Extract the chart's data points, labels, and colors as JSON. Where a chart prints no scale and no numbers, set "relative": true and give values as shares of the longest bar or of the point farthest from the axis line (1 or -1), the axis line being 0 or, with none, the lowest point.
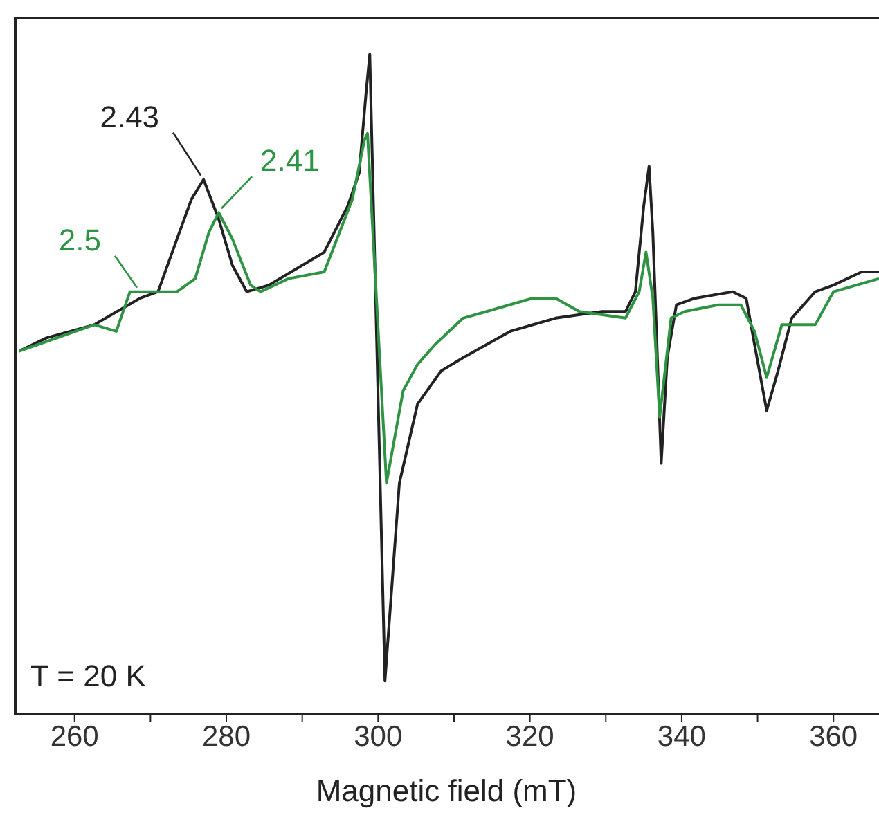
{
  "chart_data": {
    "type": "line",
    "relative": true,
    "xlabel": "Magnetic field (mT)",
    "xlim": [
      252,
      366
    ],
    "xticks": [
      260,
      {
        "value": 270,
        "label": null
      },
      280,
      {
        "value": 290,
        "label": null
      },
      300,
      {
        "value": 310,
        "label": null
      },
      320,
      {
        "value": 330,
        "label": null
      },
      340,
      {
        "value": 350,
        "label": null
      },
      360
    ],
    "tick_labels": "x",
    "grid": false,
    "legend": false,
    "marker": "none",
    "line_style": "solid",
    "annotations": [
      "T = 20 K",
      {
        "text": "2.43",
        "x": 277.0,
        "y": 0.81
      },
      {
        "text": "2.41",
        "x": 279.0,
        "y": 0.76
      },
      {
        "text": "2.5",
        "x": 268.6,
        "y": 0.64
      }
    ],
    "series": [
      {
        "color": "#222222",
        "x": [
          252.7,
          256.3,
          262.6,
          268.6,
          271.0,
          273.5,
          275.4,
          277.0,
          279.0,
          280.8,
          282.7,
          285.6,
          290.0,
          292.9,
          296.0,
          297.5,
          298.4,
          298.9,
          300.9,
          302.8,
          305.2,
          308.3,
          311.2,
          314.3,
          317.4,
          323.4,
          329.5,
          332.6,
          333.9,
          335.0,
          335.7,
          336.2,
          337.3,
          338.1,
          339.3,
          341.7,
          346.7,
          348.5,
          349.6,
          351.2,
          352.7,
          354.5,
          357.6,
          360.0,
          363.7,
          366.0
        ],
        "values": [
          0.55,
          0.57,
          0.59,
          0.63,
          0.64,
          0.72,
          0.78,
          0.81,
          0.75,
          0.68,
          0.64,
          0.65,
          0.68,
          0.7,
          0.77,
          0.82,
          0.94,
          1.0,
          0.05,
          0.35,
          0.47,
          0.52,
          0.54,
          0.56,
          0.58,
          0.6,
          0.61,
          0.61,
          0.64,
          0.77,
          0.83,
          0.73,
          0.38,
          0.54,
          0.62,
          0.63,
          0.64,
          0.63,
          0.56,
          0.46,
          0.52,
          0.6,
          0.64,
          0.65,
          0.67,
          0.67
        ]
      },
      {
        "color": "#2e9444",
        "x": [
          252.7,
          262.6,
          265.5,
          267.3,
          268.6,
          270.4,
          273.5,
          275.9,
          277.7,
          279.0,
          280.8,
          283.2,
          284.5,
          288.2,
          292.9,
          296.6,
          298.2,
          298.6,
          301.1,
          303.3,
          305.2,
          307.5,
          311.2,
          314.3,
          320.3,
          323.4,
          326.5,
          332.6,
          334.4,
          335.3,
          336.2,
          337.1,
          338.6,
          340.4,
          344.8,
          347.8,
          349.6,
          351.2,
          353.2,
          355.1,
          357.6,
          360.0,
          366.0
        ],
        "values": [
          0.55,
          0.59,
          0.58,
          0.64,
          0.64,
          0.64,
          0.64,
          0.66,
          0.73,
          0.76,
          0.72,
          0.65,
          0.64,
          0.66,
          0.67,
          0.78,
          0.87,
          0.88,
          0.35,
          0.49,
          0.53,
          0.56,
          0.6,
          0.61,
          0.63,
          0.63,
          0.61,
          0.6,
          0.64,
          0.7,
          0.63,
          0.45,
          0.6,
          0.61,
          0.62,
          0.62,
          0.58,
          0.51,
          0.59,
          0.59,
          0.59,
          0.64,
          0.66
        ]
      }
    ]
  }
}
